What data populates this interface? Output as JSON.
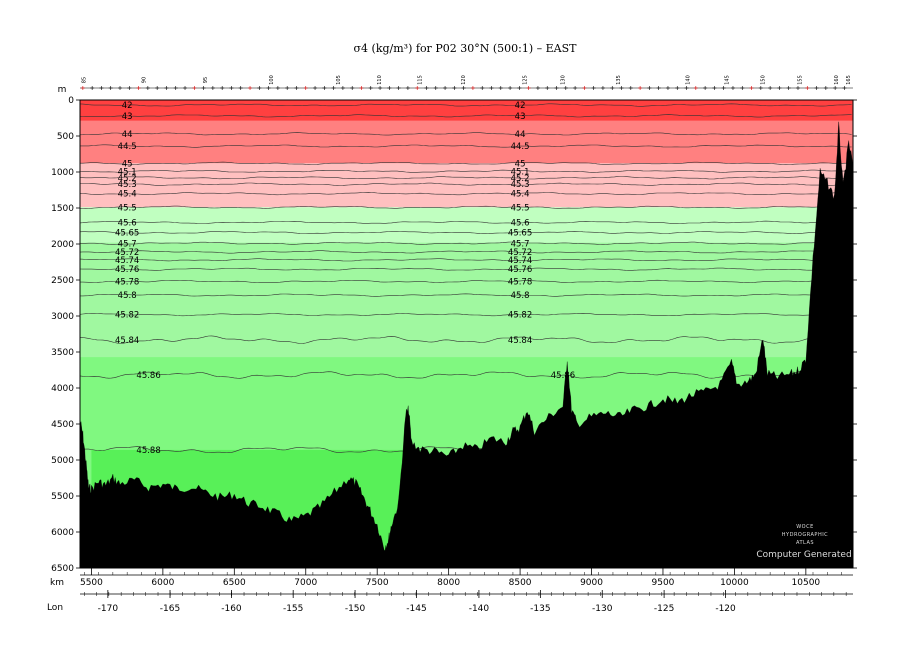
{
  "chart_data": {
    "type": "area",
    "title": "σ4 (kg/m³) for P02 30°N (500:1) – EAST",
    "x_unit_label": "km",
    "y_unit_label": "m",
    "lon_label": "Lon",
    "xlim": [
      5420,
      10830
    ],
    "ylim": [
      6500,
      0
    ],
    "x_ticks": [
      5500,
      6000,
      6500,
      7000,
      7500,
      8000,
      8500,
      9000,
      9500,
      10000,
      10500
    ],
    "y_ticks": [
      0,
      500,
      1000,
      1500,
      2000,
      2500,
      3000,
      3500,
      4000,
      4500,
      5000,
      5500,
      6000,
      6500
    ],
    "lon_ticks": [
      {
        "label": "-170",
        "km": 5615
      },
      {
        "label": "-165",
        "km": 6050
      },
      {
        "label": "-160",
        "km": 6480
      },
      {
        "label": "-155",
        "km": 6912
      },
      {
        "label": "-150",
        "km": 7345
      },
      {
        "label": "-145",
        "km": 7775
      },
      {
        "label": "-140",
        "km": 8212
      },
      {
        "label": "-135",
        "km": 8642
      },
      {
        "label": "-130",
        "km": 9075
      },
      {
        "label": "-125",
        "km": 9508
      },
      {
        "label": "-120",
        "km": 9938
      }
    ],
    "station_labels": [
      {
        "label": "85",
        "km": 5460
      },
      {
        "label": "90",
        "km": 5880
      },
      {
        "label": "95",
        "km": 6310
      },
      {
        "label": "100",
        "km": 6770
      },
      {
        "label": "105",
        "km": 7240
      },
      {
        "label": "110",
        "km": 7525
      },
      {
        "label": "115",
        "km": 7810
      },
      {
        "label": "120",
        "km": 8115
      },
      {
        "label": "125",
        "km": 8545
      },
      {
        "label": "130",
        "km": 8810
      },
      {
        "label": "135",
        "km": 9200
      },
      {
        "label": "140",
        "km": 9685
      },
      {
        "label": "145",
        "km": 9960
      },
      {
        "label": "150",
        "km": 10210
      },
      {
        "label": "155",
        "km": 10470
      },
      {
        "label": "160",
        "km": 10725
      },
      {
        "label": "165",
        "km": 10810
      }
    ],
    "color_bands": [
      {
        "from": 0,
        "to": 290,
        "color": "#ff4040"
      },
      {
        "from": 290,
        "to": 880,
        "color": "#ff8080"
      },
      {
        "from": 880,
        "to": 1490,
        "color": "#ffc0c0"
      },
      {
        "from": 1490,
        "to": 1980,
        "color": "#c0ffc0"
      },
      {
        "from": 1980,
        "to": 3570,
        "color": "#a0f8a0"
      },
      {
        "from": 3570,
        "to": 6500,
        "color": "#80f880"
      }
    ],
    "deep_pool": {
      "color": "#58f058",
      "start_km": 5500,
      "end_km": 7680,
      "top_depth": 4860
    },
    "contours": [
      {
        "label": "42",
        "depth": 70
      },
      {
        "label": "43",
        "depth": 220
      },
      {
        "label": "44",
        "depth": 470
      },
      {
        "label": "44.5",
        "depth": 640
      },
      {
        "label": "45",
        "depth": 880
      },
      {
        "label": "45.1",
        "depth": 990
      },
      {
        "label": "45.2",
        "depth": 1080
      },
      {
        "label": "45.3",
        "depth": 1170
      },
      {
        "label": "45.4",
        "depth": 1300
      },
      {
        "label": "45.5",
        "depth": 1490
      },
      {
        "label": "45.6",
        "depth": 1700
      },
      {
        "label": "45.65",
        "depth": 1840
      },
      {
        "label": "45.7",
        "depth": 1990
      },
      {
        "label": "45.72",
        "depth": 2110
      },
      {
        "label": "45.74",
        "depth": 2220
      },
      {
        "label": "45.76",
        "depth": 2350
      },
      {
        "label": "45.78",
        "depth": 2520
      },
      {
        "label": "45.8",
        "depth": 2710
      },
      {
        "label": "45.82",
        "depth": 2980
      },
      {
        "label": "45.84",
        "depth": 3330
      },
      {
        "label": "45.86",
        "depth": 3820
      },
      {
        "label": "45.88",
        "depth": 4860
      }
    ],
    "label_positions_km": [
      5750,
      8500
    ],
    "bathymetry": [
      [
        5420,
        4450
      ],
      [
        5440,
        4650
      ],
      [
        5460,
        5000
      ],
      [
        5480,
        5380
      ],
      [
        5500,
        5400
      ],
      [
        5550,
        5300
      ],
      [
        5600,
        5350
      ],
      [
        5650,
        5250
      ],
      [
        5700,
        5330
      ],
      [
        5800,
        5280
      ],
      [
        5900,
        5380
      ],
      [
        6000,
        5340
      ],
      [
        6100,
        5400
      ],
      [
        6200,
        5370
      ],
      [
        6300,
        5450
      ],
      [
        6400,
        5520
      ],
      [
        6500,
        5480
      ],
      [
        6600,
        5600
      ],
      [
        6700,
        5650
      ],
      [
        6800,
        5750
      ],
      [
        6900,
        5850
      ],
      [
        7000,
        5780
      ],
      [
        7100,
        5650
      ],
      [
        7200,
        5450
      ],
      [
        7300,
        5250
      ],
      [
        7350,
        5320
      ],
      [
        7400,
        5500
      ],
      [
        7450,
        5700
      ],
      [
        7500,
        5900
      ],
      [
        7550,
        6220
      ],
      [
        7580,
        6100
      ],
      [
        7600,
        5900
      ],
      [
        7650,
        5600
      ],
      [
        7700,
        4350
      ],
      [
        7720,
        4300
      ],
      [
        7740,
        4750
      ],
      [
        7800,
        4850
      ],
      [
        7900,
        4880
      ],
      [
        8000,
        4950
      ],
      [
        8100,
        4800
      ],
      [
        8200,
        4850
      ],
      [
        8300,
        4700
      ],
      [
        8400,
        4750
      ],
      [
        8450,
        4600
      ],
      [
        8500,
        4550
      ],
      [
        8550,
        4300
      ],
      [
        8600,
        4600
      ],
      [
        8700,
        4400
      ],
      [
        8800,
        4250
      ],
      [
        8830,
        3600
      ],
      [
        8860,
        4300
      ],
      [
        8900,
        4500
      ],
      [
        9000,
        4400
      ],
      [
        9100,
        4350
      ],
      [
        9200,
        4400
      ],
      [
        9300,
        4300
      ],
      [
        9400,
        4250
      ],
      [
        9500,
        4150
      ],
      [
        9600,
        4200
      ],
      [
        9700,
        4100
      ],
      [
        9800,
        4050
      ],
      [
        9900,
        3950
      ],
      [
        9980,
        3650
      ],
      [
        10020,
        3950
      ],
      [
        10100,
        3900
      ],
      [
        10150,
        3800
      ],
      [
        10200,
        3300
      ],
      [
        10230,
        3800
      ],
      [
        10300,
        3850
      ],
      [
        10400,
        3800
      ],
      [
        10450,
        3750
      ],
      [
        10500,
        3600
      ],
      [
        10550,
        2200
      ],
      [
        10600,
        1000
      ],
      [
        10650,
        1150
      ],
      [
        10700,
        1350
      ],
      [
        10730,
        350
      ],
      [
        10760,
        1200
      ],
      [
        10800,
        600
      ],
      [
        10830,
        900
      ]
    ]
  },
  "watermark": {
    "line1": "WOCE",
    "line2": "HYDROGRAPHIC",
    "line3": "ATLAS",
    "line4": "Computer Generated"
  }
}
